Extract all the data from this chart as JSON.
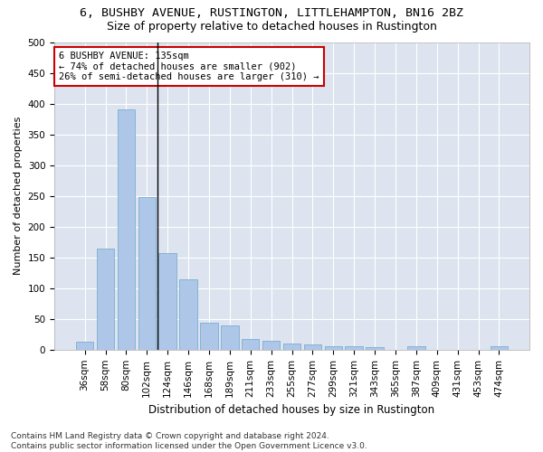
{
  "title1": "6, BUSHBY AVENUE, RUSTINGTON, LITTLEHAMPTON, BN16 2BZ",
  "title2": "Size of property relative to detached houses in Rustington",
  "xlabel": "Distribution of detached houses by size in Rustington",
  "ylabel": "Number of detached properties",
  "categories": [
    "36sqm",
    "58sqm",
    "80sqm",
    "102sqm",
    "124sqm",
    "146sqm",
    "168sqm",
    "189sqm",
    "211sqm",
    "233sqm",
    "255sqm",
    "277sqm",
    "299sqm",
    "321sqm",
    "343sqm",
    "365sqm",
    "387sqm",
    "409sqm",
    "431sqm",
    "453sqm",
    "474sqm"
  ],
  "values": [
    13,
    165,
    390,
    248,
    157,
    114,
    44,
    40,
    18,
    15,
    10,
    9,
    6,
    5,
    4,
    0,
    5,
    0,
    0,
    0,
    5
  ],
  "bar_color": "#aec6e8",
  "bar_edge_color": "#7aaed0",
  "bg_color": "#dde4f0",
  "grid_color": "#ffffff",
  "annotation_line1": "6 BUSHBY AVENUE: 135sqm",
  "annotation_line2": "← 74% of detached houses are smaller (902)",
  "annotation_line3": "26% of semi-detached houses are larger (310) →",
  "annotation_box_color": "#cc0000",
  "vline_position": 3.5,
  "ylim": [
    0,
    500
  ],
  "yticks": [
    0,
    50,
    100,
    150,
    200,
    250,
    300,
    350,
    400,
    450,
    500
  ],
  "footnote": "Contains HM Land Registry data © Crown copyright and database right 2024.\nContains public sector information licensed under the Open Government Licence v3.0.",
  "title1_fontsize": 9.5,
  "title2_fontsize": 9,
  "xlabel_fontsize": 8.5,
  "ylabel_fontsize": 8,
  "tick_fontsize": 7.5,
  "annot_fontsize": 7.5,
  "footnote_fontsize": 6.5
}
